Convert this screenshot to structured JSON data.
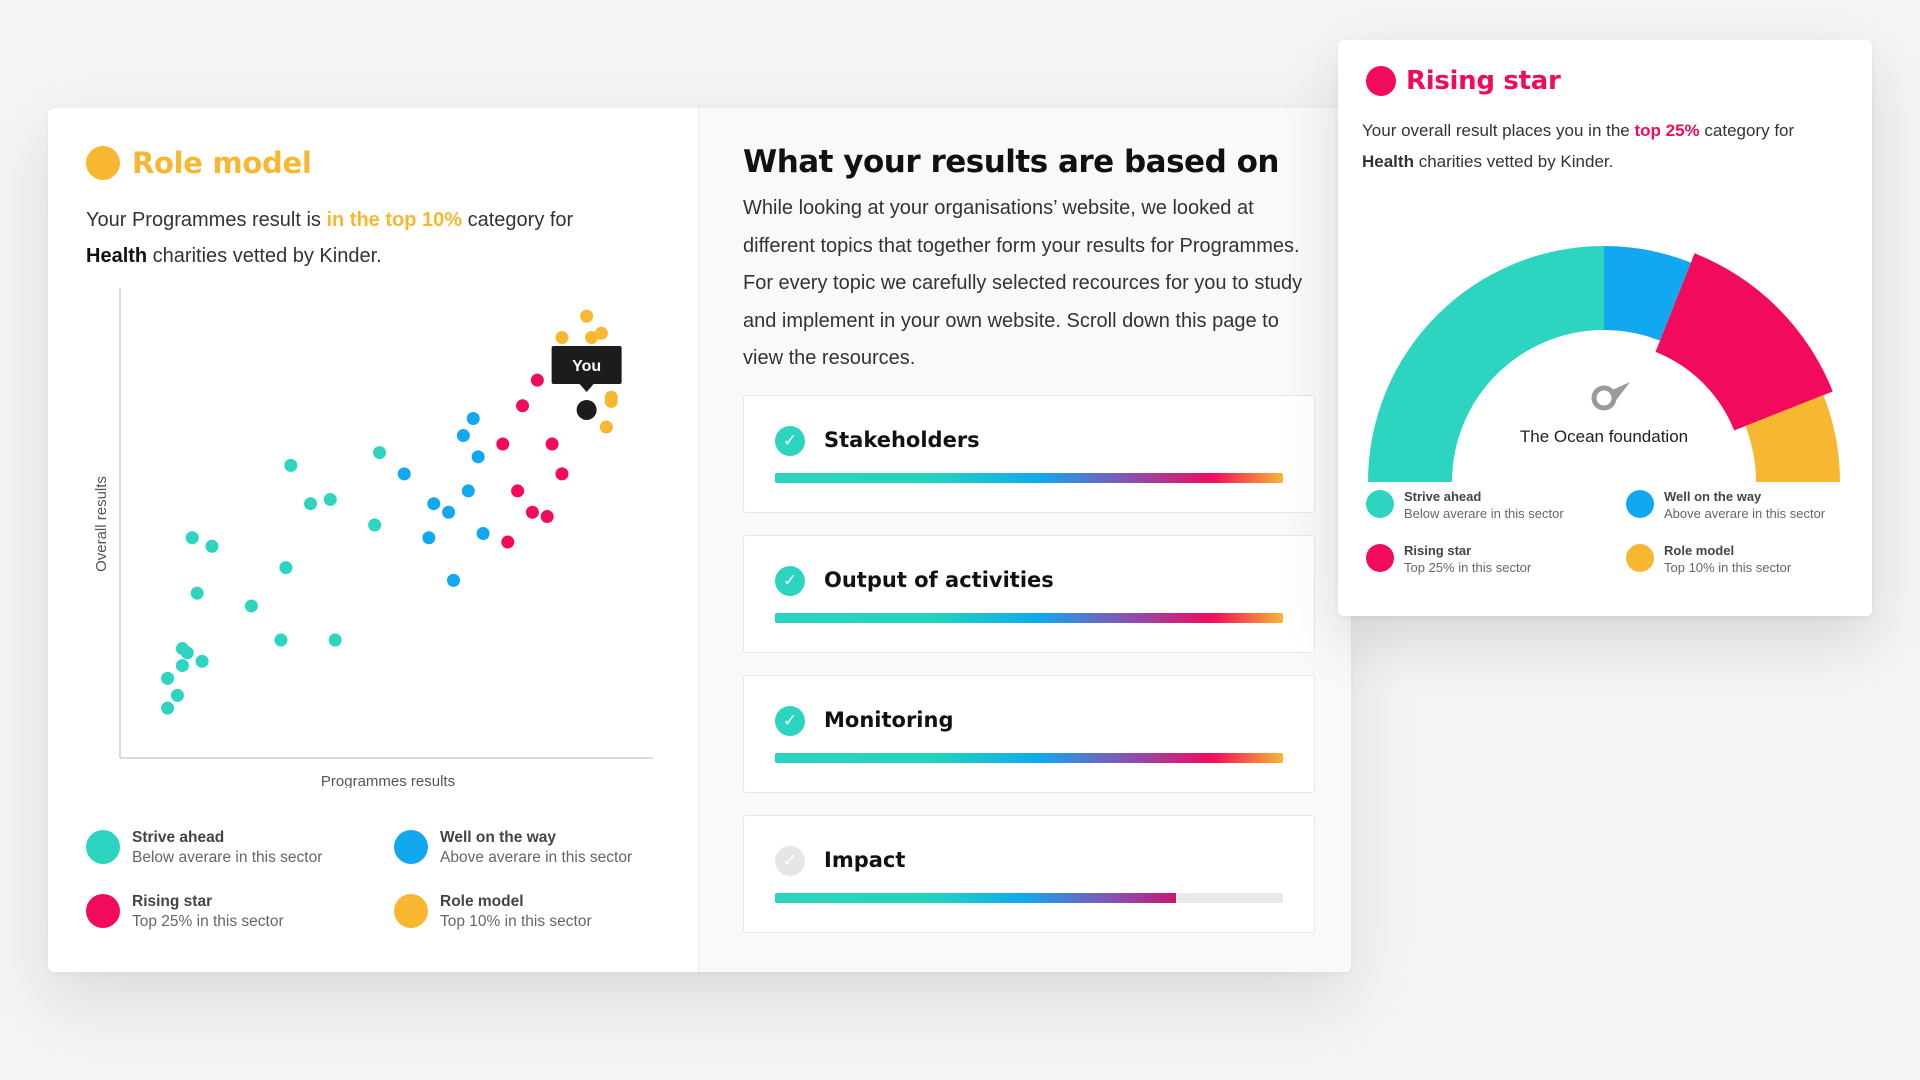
{
  "colors": {
    "strive": "#2dd4bf",
    "well": "#11a8f0",
    "rising": "#f20a5c",
    "role": "#f7b731",
    "you": "#1c1c1c"
  },
  "left": {
    "badge_title": "Role model",
    "text_before": "Your Programmes result is ",
    "text_highlight": "in the top 10%",
    "text_after": " category for",
    "text_bold": "Health",
    "text_end": " charities vetted by Kinder."
  },
  "chart_data": [
    {
      "type": "scatter",
      "title": "",
      "xlabel": "Programmes results",
      "ylabel": "Overall results",
      "xlim": [
        0,
        100
      ],
      "ylim": [
        0,
        100
      ],
      "grid": false,
      "legend_position": "bottom",
      "series": [
        {
          "name": "Strive ahead",
          "description": "Below averare in this sector",
          "color": "#2dd4bf",
          "x": [
            6,
            6,
            8,
            9,
            9,
            10,
            11,
            12,
            13,
            15,
            23,
            29,
            30,
            31,
            35,
            39,
            40,
            48,
            49
          ],
          "y": [
            7,
            14,
            10,
            17,
            21,
            20,
            47,
            34,
            18,
            45,
            31,
            23,
            40,
            64,
            55,
            56,
            23,
            50,
            67
          ]
        },
        {
          "name": "Well on the way",
          "description": "Above averare in this sector",
          "color": "#11a8f0",
          "x": [
            54,
            59,
            60,
            63,
            64,
            66,
            67,
            68,
            69,
            70
          ],
          "y": [
            62,
            47,
            55,
            53,
            37,
            71,
            58,
            75,
            66,
            48
          ]
        },
        {
          "name": "Rising star",
          "description": "Top 25% in this sector",
          "color": "#f20a5c",
          "x": [
            75,
            74,
            77,
            78,
            80,
            81,
            83,
            84,
            86
          ],
          "y": [
            46,
            69,
            58,
            78,
            53,
            84,
            52,
            69,
            62
          ]
        },
        {
          "name": "Role model",
          "description": "Top 10% in this sector",
          "color": "#f7b731",
          "x": [
            86,
            91,
            92,
            94,
            95,
            96,
            96
          ],
          "y": [
            94,
            99,
            94,
            95,
            73,
            79,
            80
          ]
        }
      ],
      "highlight": {
        "label": "You",
        "x": 91,
        "y": 77
      }
    },
    {
      "type": "pie",
      "title": "Rising star",
      "center_label": "The Ocean foundation",
      "segments": [
        {
          "name": "Strive ahead",
          "description": "Below averare in this sector",
          "value": 50,
          "color": "#2dd4bf"
        },
        {
          "name": "Well on the way",
          "description": "Above averare in this sector",
          "value": 12,
          "color": "#11a8f0"
        },
        {
          "name": "Rising star",
          "description": "Top 25% in this sector",
          "value": 26,
          "color": "#f20a5c"
        },
        {
          "name": "Role model",
          "description": "Top 10% in this sector",
          "value": 12,
          "color": "#f7b731"
        }
      ],
      "highlighted_segment": "Rising star",
      "needle_icon": "gauge-needle-icon"
    }
  ],
  "legend": [
    {
      "name": "Strive ahead",
      "description": "Below averare in this sector",
      "color": "#2dd4bf"
    },
    {
      "name": "Well on the way",
      "description": "Above averare in this sector",
      "color": "#11a8f0"
    },
    {
      "name": "Rising star",
      "description": "Top 25% in this sector",
      "color": "#f20a5c"
    },
    {
      "name": "Role model",
      "description": "Top 10% in this sector",
      "color": "#f7b731"
    }
  ],
  "right": {
    "title": "What your results are based on",
    "paragraph": "While looking at your organisations’ website, we looked at different topics that together form your results for Programmes. For every topic we carefully selected recources for you to study and implement in your own website. Scroll down this page to view the resources.",
    "topics": [
      {
        "label": "Stakeholders",
        "complete": true,
        "progress": 1.0,
        "icon": "check-icon"
      },
      {
        "label": "Output of activities",
        "complete": true,
        "progress": 1.0,
        "icon": "check-icon"
      },
      {
        "label": "Monitoring",
        "complete": true,
        "progress": 1.0,
        "icon": "check-icon"
      },
      {
        "label": "Impact",
        "complete": false,
        "progress": 0.79,
        "icon": "check-icon"
      }
    ]
  },
  "gauge": {
    "title": "Rising star",
    "text_before": "Your overall result places you in the ",
    "text_highlight": "top 25%",
    "text_after": " category for",
    "text_bold": "Health",
    "text_end": " charities vetted by Kinder."
  }
}
